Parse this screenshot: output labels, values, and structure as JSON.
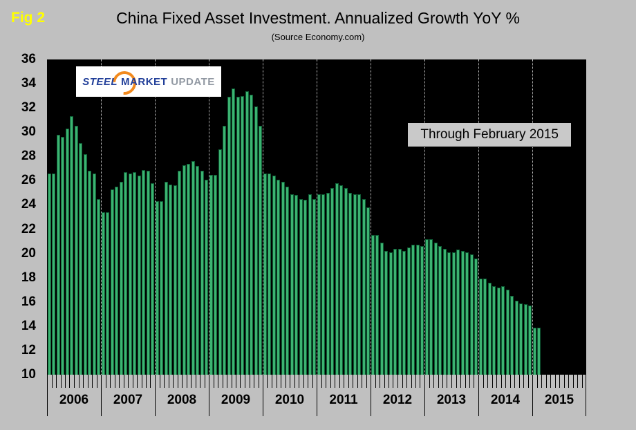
{
  "figure": {
    "fig_label": "Fig 2",
    "title": "China Fixed Asset Investment. Annualized Growth YoY %",
    "subtitle": "(Source Economy.com)"
  },
  "logo": {
    "word1": "STEEL",
    "word2": "MARKET",
    "word3": "UPDATE",
    "swoosh_icon_color": "#F28A1E",
    "text_color_blue": "#23409A",
    "text_color_gray": "#9299A3"
  },
  "annotation": {
    "text": "Through February 2015"
  },
  "chart_data": {
    "type": "bar",
    "title": "China Fixed Asset Investment. Annualized Growth YoY %",
    "subtitle": "(Source Economy.com)",
    "annotation": "Through February 2015",
    "fig_label": "Fig 2",
    "ylim": [
      10,
      36
    ],
    "yticks": [
      10,
      12,
      14,
      16,
      18,
      20,
      22,
      24,
      26,
      28,
      30,
      32,
      34,
      36
    ],
    "x_start_year": 2006,
    "x_axis_end_year": 2016,
    "year_labels": [
      "2006",
      "2007",
      "2008",
      "2009",
      "2010",
      "2011",
      "2012",
      "2013",
      "2014",
      "2015"
    ],
    "x_unit": "month",
    "first_value_month": "2006-01",
    "last_value_month": "2015-02",
    "values": [
      26.6,
      26.6,
      29.8,
      29.6,
      30.3,
      31.3,
      30.5,
      29.1,
      28.2,
      26.8,
      26.6,
      24.5,
      23.4,
      23.4,
      25.3,
      25.5,
      25.9,
      26.7,
      26.6,
      26.7,
      26.4,
      26.9,
      26.8,
      25.8,
      24.3,
      24.3,
      25.9,
      25.7,
      25.6,
      26.8,
      27.3,
      27.4,
      27.6,
      27.2,
      26.8,
      26.1,
      26.5,
      26.5,
      28.6,
      30.5,
      32.9,
      33.6,
      32.9,
      33.0,
      33.4,
      33.1,
      32.1,
      30.5,
      26.6,
      26.6,
      26.4,
      26.1,
      25.9,
      25.5,
      24.9,
      24.8,
      24.5,
      24.4,
      24.9,
      24.5,
      24.9,
      24.9,
      25.0,
      25.4,
      25.8,
      25.6,
      25.4,
      25.0,
      24.9,
      24.9,
      24.5,
      23.8,
      21.5,
      21.5,
      20.9,
      20.2,
      20.1,
      20.4,
      20.4,
      20.2,
      20.5,
      20.7,
      20.7,
      20.6,
      21.2,
      21.2,
      20.9,
      20.6,
      20.4,
      20.1,
      20.1,
      20.3,
      20.2,
      20.1,
      19.9,
      19.6,
      17.9,
      17.9,
      17.6,
      17.3,
      17.2,
      17.3,
      17.0,
      16.5,
      16.1,
      15.9,
      15.8,
      15.7,
      13.9,
      13.9
    ],
    "bar_color": "#3CB371",
    "bar_edge_color": "#0E5C35",
    "plot_bg": "#000000",
    "page_bg": "#C0C0C0",
    "fig_label_color": "#FFFF00",
    "gridlines": "vertical-dotted-at-year-boundaries",
    "legend": null
  }
}
